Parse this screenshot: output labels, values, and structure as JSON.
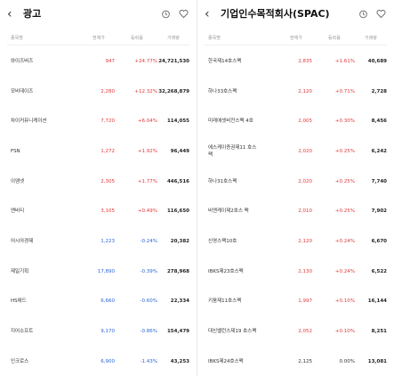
{
  "left": {
    "title": "광고",
    "back_icon": "chevron-left",
    "headers": {
      "name": "종목명",
      "price": "현재가",
      "change": "등락률",
      "volume": "거래량"
    },
    "rows": [
      {
        "name": "와이즈버즈",
        "price": "947",
        "change": "+24.77%",
        "volume": "24,721,530",
        "dir": "up"
      },
      {
        "name": "모비데이즈",
        "price": "2,280",
        "change": "+12.32%",
        "volume": "32,268,879",
        "dir": "up"
      },
      {
        "name": "차이커뮤니케이션",
        "price": "7,720",
        "change": "+6.04%",
        "volume": "114,055",
        "dir": "up"
      },
      {
        "name": "FSN",
        "price": "1,272",
        "change": "+1.92%",
        "volume": "96,449",
        "dir": "up"
      },
      {
        "name": "이엠넷",
        "price": "2,305",
        "change": "+1.77%",
        "volume": "446,516",
        "dir": "up"
      },
      {
        "name": "엔비티",
        "price": "3,105",
        "change": "+0.49%",
        "volume": "116,650",
        "dir": "up"
      },
      {
        "name": "어시아경제",
        "price": "1,223",
        "change": "-0.24%",
        "volume": "20,382",
        "dir": "down"
      },
      {
        "name": "제일기획",
        "price": "17,890",
        "change": "-0.39%",
        "volume": "278,968",
        "dir": "down"
      },
      {
        "name": "HS애드",
        "price": "6,660",
        "change": "-0.60%",
        "volume": "22,334",
        "dir": "down"
      },
      {
        "name": "지어소프트",
        "price": "9,170",
        "change": "-0.86%",
        "volume": "154,479",
        "dir": "down"
      },
      {
        "name": "인크로스",
        "price": "6,900",
        "change": "-1.43%",
        "volume": "43,253",
        "dir": "down"
      }
    ]
  },
  "right": {
    "title": "기업인수목적회사(SPAC)",
    "back_icon": "chevron-left",
    "headers": {
      "name": "종목명",
      "price": "현재가",
      "change": "등락률",
      "volume": "거래량"
    },
    "rows": [
      {
        "name": "한국제14호스팩",
        "price": "2,835",
        "change": "+1.61%",
        "volume": "40,689",
        "dir": "up"
      },
      {
        "name": "하나33호스팩",
        "price": "2,120",
        "change": "+0.71%",
        "volume": "2,728",
        "dir": "up"
      },
      {
        "name": "미래에셋비전스팩 4호",
        "price": "2,005",
        "change": "+0.30%",
        "volume": "8,456",
        "dir": "up"
      },
      {
        "name": "에스케이증권제11 호스팩",
        "price": "2,020",
        "change": "+0.25%",
        "volume": "6,242",
        "dir": "up"
      },
      {
        "name": "하나31호스팩",
        "price": "2,020",
        "change": "+0.25%",
        "volume": "7,740",
        "dir": "up"
      },
      {
        "name": "비엔케이제2호스 팩",
        "price": "2,010",
        "change": "+0.25%",
        "volume": "7,902",
        "dir": "up"
      },
      {
        "name": "신영스팩10호",
        "price": "2,120",
        "change": "+0.24%",
        "volume": "6,670",
        "dir": "up"
      },
      {
        "name": "IBKS제23호스팩",
        "price": "2,130",
        "change": "+0.24%",
        "volume": "6,522",
        "dir": "up"
      },
      {
        "name": "키움제11호스팩",
        "price": "1,997",
        "change": "+0.10%",
        "volume": "16,144",
        "dir": "up"
      },
      {
        "name": "대신밸런스제19 호스팩",
        "price": "2,052",
        "change": "+0.10%",
        "volume": "8,251",
        "dir": "up"
      },
      {
        "name": "IBKS제24호스팩",
        "price": "2,125",
        "change": "0.00%",
        "volume": "13,081",
        "dir": "flat"
      }
    ]
  },
  "colors": {
    "up": "#e0393b",
    "down": "#2b67d6",
    "flat": "#333333"
  }
}
